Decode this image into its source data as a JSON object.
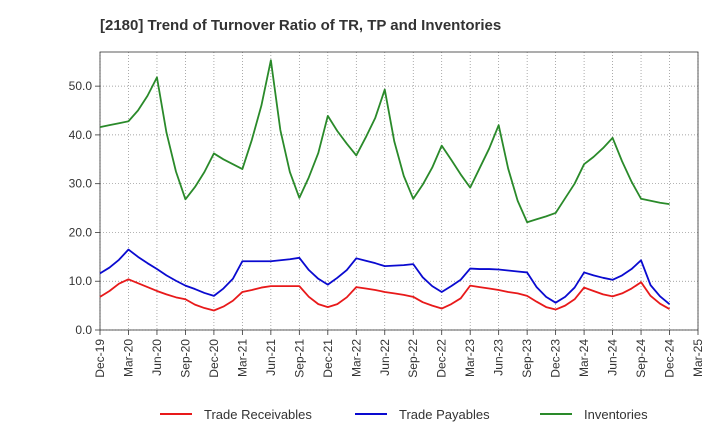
{
  "chart_data": {
    "type": "line",
    "title": "[2180]  Trend of Turnover Ratio of TR, TP and Inventories",
    "xlabel": "",
    "ylabel": "",
    "ylim": [
      0,
      57
    ],
    "yticks": [
      "0.0",
      "10.0",
      "20.0",
      "30.0",
      "40.0",
      "50.0"
    ],
    "ytick_values": [
      0,
      10,
      20,
      30,
      40,
      50
    ],
    "xticks": [
      "Dec-19",
      "Mar-20",
      "Jun-20",
      "Sep-20",
      "Dec-20",
      "Mar-21",
      "Jun-21",
      "Sep-21",
      "Dec-21",
      "Mar-22",
      "Jun-22",
      "Sep-22",
      "Dec-22",
      "Mar-23",
      "Jun-23",
      "Sep-23",
      "Dec-23",
      "Mar-24",
      "Jun-24",
      "Sep-24",
      "Dec-24",
      "Mar-25"
    ],
    "grid": "dotted",
    "legend_position": "bottom",
    "series": [
      {
        "name": "Trade Receivables",
        "color": "#e8191a",
        "values": [
          6.8,
          8.0,
          9.5,
          10.4,
          9.6,
          8.8,
          8.0,
          7.3,
          6.7,
          6.3,
          5.2,
          4.5,
          4.0,
          4.8,
          6.0,
          7.8,
          8.2,
          8.7,
          9.0,
          9.0,
          9.0,
          9.0,
          6.8,
          5.3,
          4.7,
          5.3,
          6.7,
          8.8,
          8.5,
          8.2,
          7.8,
          7.5,
          7.2,
          6.8,
          5.7,
          5.0,
          4.4,
          5.3,
          6.5,
          9.1,
          8.8,
          8.5,
          8.2,
          7.8,
          7.5,
          7.0,
          5.8,
          4.7,
          4.2,
          5.0,
          6.3,
          8.7,
          8.0,
          7.3,
          6.9,
          7.5,
          8.5,
          9.8,
          7.0,
          5.4,
          4.3
        ]
      },
      {
        "name": "Trade Payables",
        "color": "#0a0ad0",
        "values": [
          11.6,
          12.8,
          14.4,
          16.5,
          15.0,
          13.7,
          12.5,
          11.2,
          10.1,
          9.1,
          8.4,
          7.6,
          7.0,
          8.5,
          10.5,
          14.1,
          14.1,
          14.1,
          14.1,
          14.3,
          14.5,
          14.8,
          12.3,
          10.5,
          9.3,
          10.7,
          12.3,
          14.7,
          14.2,
          13.7,
          13.1,
          13.2,
          13.3,
          13.5,
          10.8,
          9.0,
          7.8,
          9.0,
          10.3,
          12.6,
          12.5,
          12.5,
          12.4,
          12.2,
          12.0,
          11.8,
          8.8,
          6.8,
          5.6,
          6.8,
          8.7,
          11.8,
          11.2,
          10.7,
          10.3,
          11.2,
          12.5,
          14.3,
          9.2,
          6.9,
          5.3
        ]
      },
      {
        "name": "Inventories",
        "color": "#2a8a2a",
        "values": [
          41.6,
          42.0,
          42.4,
          42.8,
          45.0,
          48.0,
          51.8,
          40.5,
          32.5,
          26.8,
          29.3,
          32.4,
          36.2,
          35.0,
          34.0,
          33.0,
          39.0,
          46.0,
          55.3,
          41.0,
          32.4,
          27.1,
          31.3,
          36.3,
          43.9,
          40.8,
          38.2,
          35.8,
          39.5,
          43.5,
          49.3,
          38.7,
          31.6,
          26.9,
          29.8,
          33.3,
          37.8,
          34.9,
          31.9,
          29.2,
          33.2,
          37.2,
          42.0,
          33.1,
          26.5,
          22.1,
          22.7,
          23.3,
          24.0,
          27.0,
          30.0,
          34.0,
          35.5,
          37.3,
          39.4,
          34.6,
          30.4,
          26.9,
          26.5,
          26.1,
          25.8
        ]
      }
    ]
  }
}
